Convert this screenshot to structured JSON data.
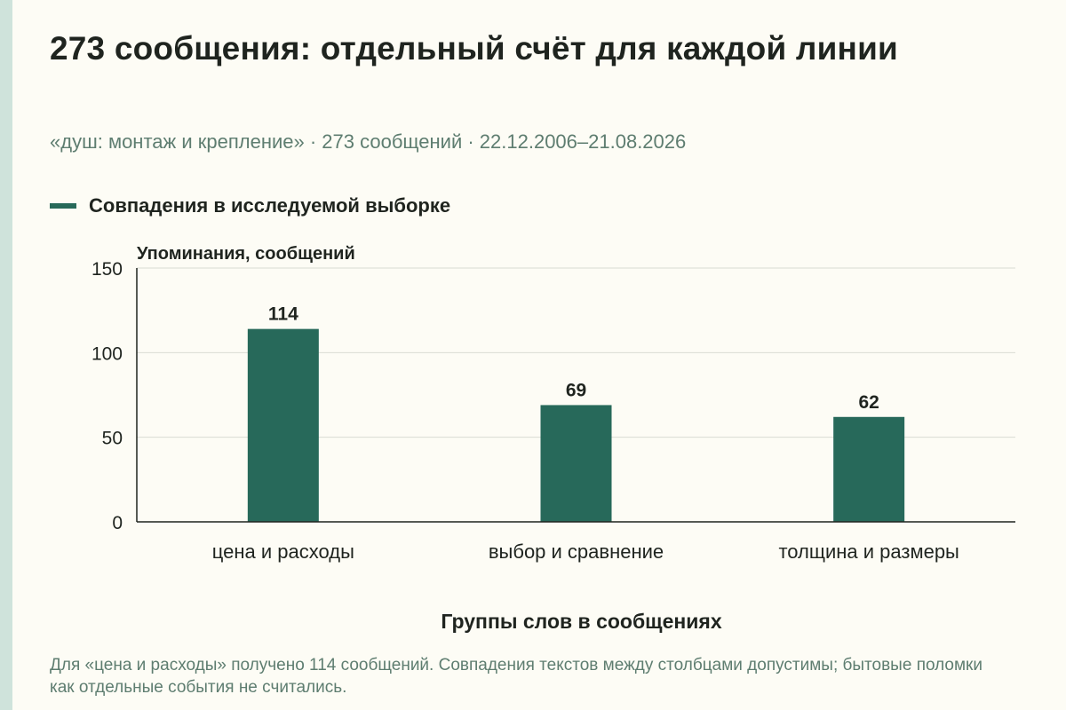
{
  "header": {
    "title": "273 сообщения: отдельный счёт для каждой линии",
    "subtitle": "«душ: монтаж и крепление» · 273 сообщений · 22.12.2006–21.08.2026"
  },
  "legend": {
    "label": "Совпадения в исследуемой выборке"
  },
  "footer": {
    "note": "Для «цена и расходы» получено 114 сообщений. Совпадения текстов между столбцами допустимы; бытовые поломки как отдельные события не считались."
  },
  "colors": {
    "bar": "#27695a",
    "grid": "#d9dbd3",
    "axis": "#1f241f",
    "background": "#fdfcf5"
  },
  "chart_data": {
    "type": "bar",
    "categories": [
      "цена и расходы",
      "выбор и сравнение",
      "толщина и размеры"
    ],
    "series": [
      {
        "name": "Совпадения в исследуемой выборке",
        "values": [
          114,
          69,
          62
        ]
      }
    ],
    "xlabel": "Группы слов в сообщениях",
    "ylabel": "Упоминания, сообщений",
    "ylim": [
      0,
      150
    ],
    "yticks": [
      0,
      50,
      100,
      150
    ],
    "grid": true,
    "data_labels": true,
    "legend_position": "top-left"
  }
}
